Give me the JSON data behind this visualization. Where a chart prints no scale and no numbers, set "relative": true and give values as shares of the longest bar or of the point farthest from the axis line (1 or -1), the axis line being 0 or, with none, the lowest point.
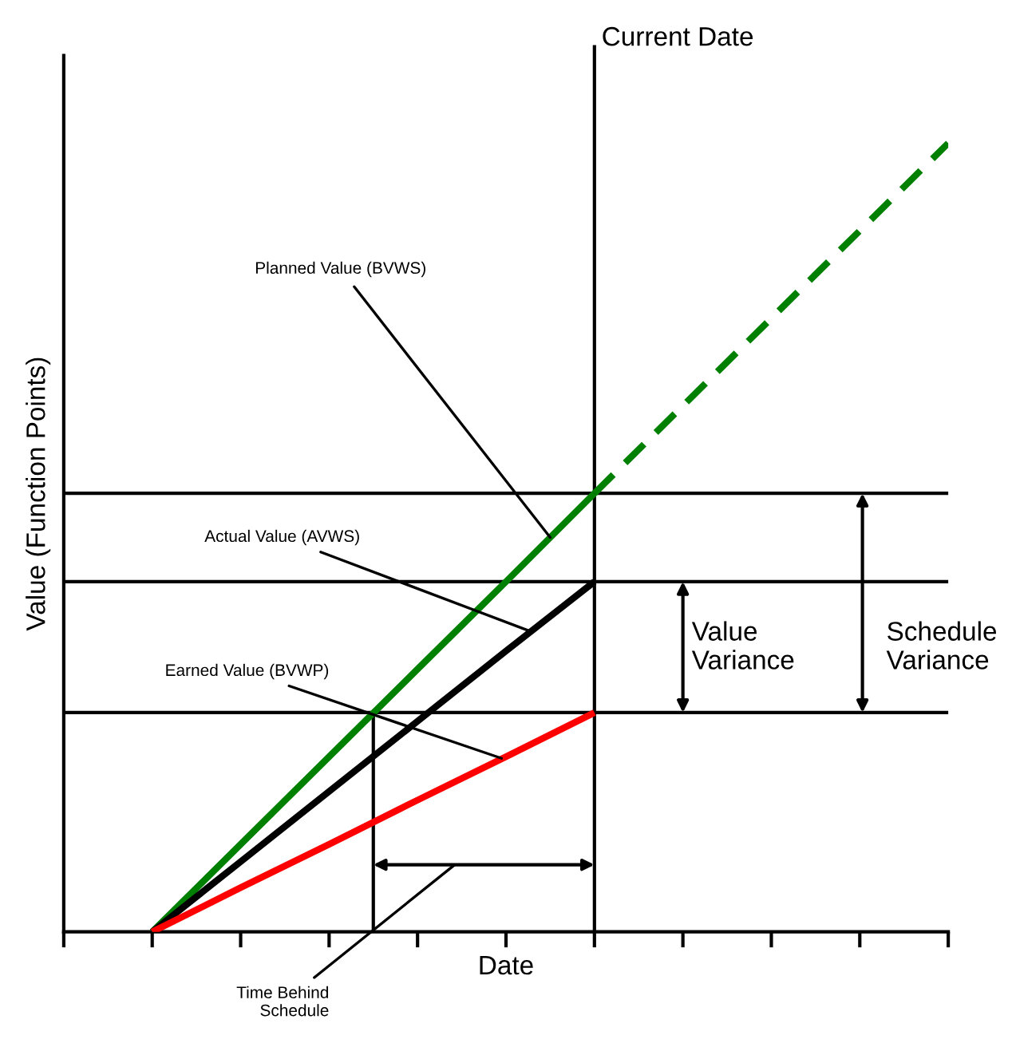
{
  "chart_data": {
    "type": "line",
    "relative": true,
    "xlabel": "Date",
    "ylabel": "Value (Function Points)",
    "categories": [
      null,
      null,
      null,
      null,
      null,
      null,
      null,
      null,
      null,
      null,
      null
    ],
    "series": [
      {
        "color": "#008000",
        "line_style": "solid",
        "values": [
          null,
          0,
          0.111,
          0.222,
          0.333,
          0.444,
          0.556,
          null,
          null,
          null,
          null
        ]
      },
      {
        "color": "#008000",
        "line_style": "dashed",
        "values": [
          null,
          null,
          null,
          null,
          null,
          null,
          0.556,
          0.667,
          0.778,
          0.889,
          1.0
        ]
      },
      {
        "color": "#000000",
        "line_style": "solid",
        "values": [
          null,
          0,
          0.089,
          0.178,
          0.267,
          0.356,
          0.444,
          null,
          null,
          null,
          null
        ]
      },
      {
        "color": "#ff0000",
        "line_style": "solid",
        "values": [
          null,
          0,
          0.056,
          0.111,
          0.167,
          0.222,
          0.278,
          null,
          null,
          null,
          null
        ]
      }
    ],
    "ref_lines": [
      {
        "axis": "y",
        "value": 0.556,
        "color": "#000000"
      },
      {
        "axis": "y",
        "value": 0.444,
        "color": "#000000"
      },
      {
        "axis": "y",
        "value": 0.278,
        "color": "#000000"
      }
    ],
    "annotations": [
      "Planned Value (BVWS)",
      "Actual Value (AVWS)",
      "Earned Value (BVWP)",
      "Value\nVariance",
      "Schedule\nVariance",
      "Time Behind\nSchedule",
      "Current Date"
    ],
    "grid": false,
    "marker": "none"
  }
}
